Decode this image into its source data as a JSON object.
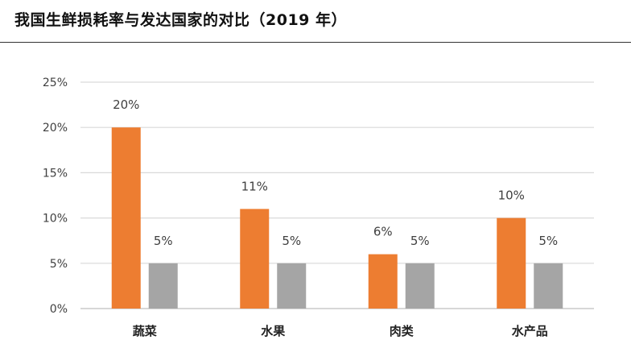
{
  "title": "我国生鲜损耗率与发达国家的对比（2019 年）",
  "colors": {
    "china": "#ED7D31",
    "developed": "#A5A5A5",
    "grid": "#D9D9D9",
    "axis": "#BFBFBF",
    "text": "#404040"
  },
  "chart_data": {
    "type": "bar",
    "title": "我国生鲜损耗率与发达国家的对比（2019 年）",
    "xlabel": "",
    "ylabel": "",
    "categories": [
      "蔬菜",
      "水果",
      "肉类",
      "水产品"
    ],
    "series": [
      {
        "values": [
          20,
          11,
          6,
          10
        ],
        "labels": [
          "20%",
          "11%",
          "6%",
          "10%"
        ],
        "color": "#ED7D31"
      },
      {
        "values": [
          5,
          5,
          5,
          5
        ],
        "labels": [
          "5%",
          "5%",
          "5%",
          "5%"
        ],
        "color": "#A5A5A5"
      }
    ],
    "ylim": [
      0,
      25
    ],
    "yticks": [
      0,
      5,
      10,
      15,
      20,
      25
    ],
    "ytick_labels": [
      "0%",
      "5%",
      "10%",
      "15%",
      "20%",
      "25%"
    ],
    "grid": true,
    "legend": "none"
  }
}
